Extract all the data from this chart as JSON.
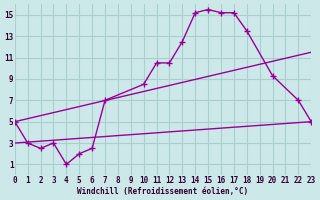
{
  "xlabel": "Windchill (Refroidissement éolien,°C)",
  "bg_color": "#cce8e8",
  "grid_color": "#aacfcf",
  "line_color": "#990099",
  "line1_x": [
    0,
    1,
    2,
    3,
    4,
    5,
    6,
    7,
    10,
    11,
    12,
    13,
    14,
    15,
    16,
    17,
    18,
    20,
    22,
    23
  ],
  "line1_y": [
    5,
    3,
    2.5,
    3,
    1,
    2,
    2.5,
    7,
    8.5,
    10.5,
    10.5,
    12.5,
    15.2,
    15.5,
    15.2,
    15.2,
    13.5,
    9.3,
    7.0,
    5.0
  ],
  "line2_x": [
    0,
    23
  ],
  "line2_y": [
    5,
    11.5
  ],
  "line3_x": [
    0,
    23
  ],
  "line3_y": [
    3,
    5.0
  ],
  "xlim": [
    0,
    23
  ],
  "ylim": [
    0,
    16
  ],
  "xticks": [
    0,
    1,
    2,
    3,
    4,
    5,
    6,
    7,
    8,
    9,
    10,
    11,
    12,
    13,
    14,
    15,
    16,
    17,
    18,
    19,
    20,
    21,
    22,
    23
  ],
  "yticks": [
    1,
    3,
    5,
    7,
    9,
    11,
    13,
    15
  ]
}
